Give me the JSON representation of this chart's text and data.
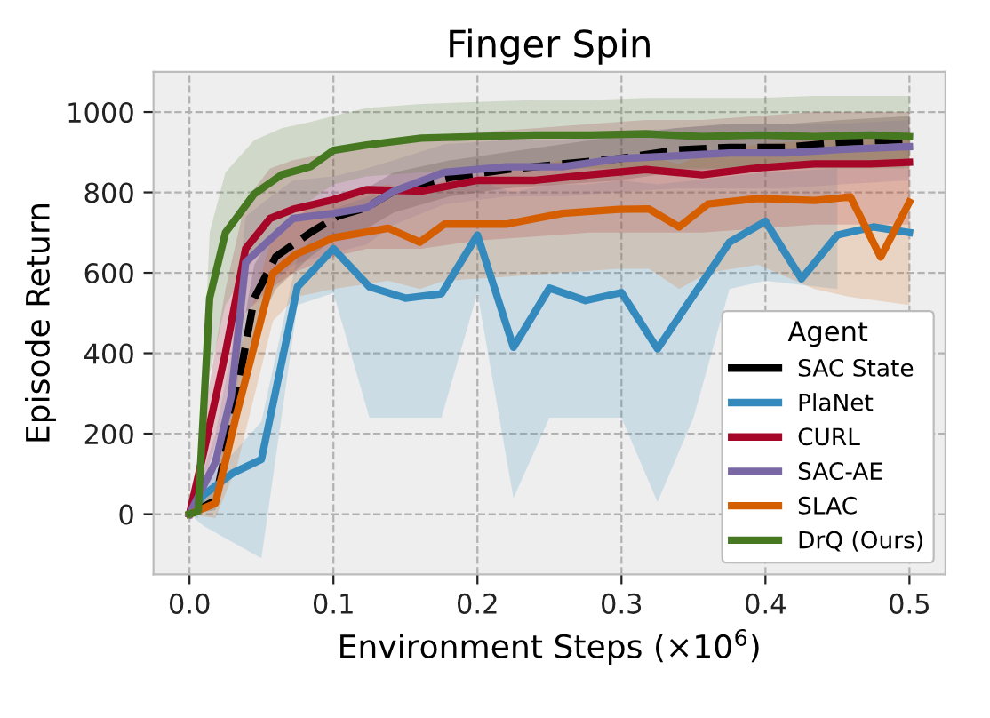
{
  "chart_data": {
    "type": "line",
    "title": "Finger Spin",
    "xlabel": "Environment Steps (×10$^{6}$)",
    "ylabel": "Episode Return",
    "legend_title": "Agent",
    "legend": "bottom right",
    "grid": true,
    "line_style": "solid",
    "marker": "none",
    "xlim": [
      -0.025,
      0.525
    ],
    "xticks": [
      {
        "value": 0,
        "label": "0.0"
      },
      0.1,
      0.2,
      0.3,
      0.4,
      0.5
    ],
    "ylim": [
      -150,
      1100
    ],
    "yticks": [
      0,
      200,
      400,
      600,
      800,
      1000
    ],
    "series": [
      {
        "name": "SAC State",
        "color": "#000000",
        "line_style": "dashed",
        "x": [
          0,
          0.018,
          0.029,
          0.045,
          0.06,
          0.084,
          0.103,
          0.123,
          0.142,
          0.181,
          0.22,
          0.259,
          0.298,
          0.337,
          0.375,
          0.414,
          0.453,
          0.5
        ],
        "values": [
          0,
          34,
          224,
          537,
          640,
          700,
          741,
          762,
          803,
          837,
          857,
          871,
          884,
          905,
          912,
          912,
          925,
          932
        ],
        "lower": [
          0,
          10,
          150,
          450,
          560,
          640,
          690,
          710,
          750,
          790,
          810,
          820,
          830,
          850,
          860,
          860,
          870,
          870
        ],
        "upper": [
          0,
          60,
          300,
          620,
          710,
          760,
          790,
          810,
          850,
          880,
          900,
          920,
          940,
          960,
          970,
          970,
          980,
          990
        ]
      },
      {
        "name": "PlaNet",
        "color": "#348abd",
        "x": [
          0,
          0.01,
          0.03,
          0.05,
          0.075,
          0.1,
          0.125,
          0.15,
          0.175,
          0.2,
          0.225,
          0.25,
          0.275,
          0.3,
          0.325,
          0.35,
          0.375,
          0.4,
          0.425,
          0.45,
          0.475,
          0.5
        ],
        "values": [
          0,
          48,
          102,
          136,
          565,
          660,
          565,
          537,
          548,
          694,
          415,
          562,
          531,
          551,
          411,
          544,
          676,
          728,
          585,
          694,
          714,
          700
        ],
        "lower": [
          0,
          -30,
          -70,
          -110,
          520,
          550,
          240,
          240,
          240,
          550,
          40,
          240,
          240,
          240,
          30,
          240,
          560,
          580,
          null,
          560,
          null,
          null
        ],
        "upper": [
          0,
          80,
          150,
          230,
          640,
          760,
          790,
          800,
          810,
          830,
          800,
          820,
          820,
          830,
          820,
          830,
          840,
          850,
          null,
          860,
          null,
          null
        ]
      },
      {
        "name": "CURL",
        "color": "#a60628",
        "x": [
          0,
          0.01,
          0.025,
          0.039,
          0.056,
          0.072,
          0.1,
          0.123,
          0.161,
          0.2,
          0.24,
          0.278,
          0.317,
          0.356,
          0.395,
          0.434,
          0.473,
          0.5
        ],
        "values": [
          0,
          156,
          401,
          660,
          735,
          758,
          782,
          807,
          803,
          830,
          830,
          844,
          857,
          844,
          861,
          871,
          871,
          875
        ],
        "lower": [
          0,
          80,
          250,
          500,
          560,
          600,
          640,
          660,
          660,
          680,
          690,
          700,
          700,
          700,
          710,
          720,
          720,
          720
        ],
        "upper": [
          0,
          240,
          560,
          780,
          860,
          880,
          900,
          920,
          930,
          950,
          960,
          970,
          980,
          980,
          990,
          1000,
          1000,
          1000
        ]
      },
      {
        "name": "SAC-AE",
        "color": "#7a68a6",
        "x": [
          0,
          0.018,
          0.029,
          0.039,
          0.053,
          0.072,
          0.1,
          0.123,
          0.142,
          0.177,
          0.22,
          0.259,
          0.298,
          0.337,
          0.375,
          0.414,
          0.453,
          0.5
        ],
        "values": [
          0,
          129,
          293,
          626,
          673,
          735,
          748,
          762,
          803,
          850,
          864,
          864,
          884,
          891,
          898,
          898,
          907,
          914
        ],
        "lower": [
          0,
          60,
          180,
          500,
          560,
          620,
          650,
          670,
          720,
          770,
          790,
          790,
          800,
          810,
          810,
          810,
          820,
          830
        ],
        "upper": [
          0,
          200,
          400,
          740,
          780,
          830,
          840,
          860,
          880,
          920,
          930,
          930,
          950,
          960,
          970,
          970,
          970,
          980
        ]
      },
      {
        "name": "SLAC",
        "color": "#d55e00",
        "x": [
          0,
          0.018,
          0.033,
          0.058,
          0.074,
          0.1,
          0.138,
          0.16,
          0.177,
          0.22,
          0.259,
          0.298,
          0.319,
          0.34,
          0.36,
          0.395,
          0.434,
          0.459,
          0.48,
          0.5
        ],
        "values": [
          0,
          27,
          252,
          599,
          646,
          687,
          711,
          676,
          721,
          721,
          748,
          758,
          759,
          714,
          771,
          785,
          780,
          789,
          639,
          776
        ],
        "lower": [
          0,
          -10,
          120,
          480,
          540,
          560,
          580,
          560,
          580,
          590,
          600,
          610,
          610,
          560,
          600,
          620,
          560,
          540,
          null,
          520
        ],
        "upper": [
          0,
          70,
          380,
          700,
          750,
          790,
          820,
          800,
          830,
          850,
          880,
          880,
          890,
          870,
          900,
          920,
          930,
          940,
          null,
          950
        ]
      },
      {
        "name": "DrQ (Ours)",
        "color": "#467821",
        "x": [
          0,
          0.006,
          0.014,
          0.025,
          0.045,
          0.064,
          0.084,
          0.1,
          0.123,
          0.161,
          0.2,
          0.24,
          0.278,
          0.317,
          0.356,
          0.395,
          0.434,
          0.473,
          0.5
        ],
        "values": [
          0,
          7,
          537,
          700,
          796,
          844,
          864,
          905,
          918,
          935,
          939,
          943,
          943,
          946,
          939,
          943,
          939,
          943,
          939
        ],
        "lower": [
          0,
          -10,
          350,
          520,
          640,
          720,
          780,
          820,
          840,
          850,
          860,
          860,
          860,
          860,
          860,
          860,
          860,
          860,
          860
        ],
        "upper": [
          0,
          30,
          700,
          850,
          930,
          960,
          975,
          990,
          1010,
          1020,
          1025,
          1030,
          1030,
          1035,
          1035,
          1035,
          1040,
          1040,
          1040
        ]
      }
    ]
  }
}
